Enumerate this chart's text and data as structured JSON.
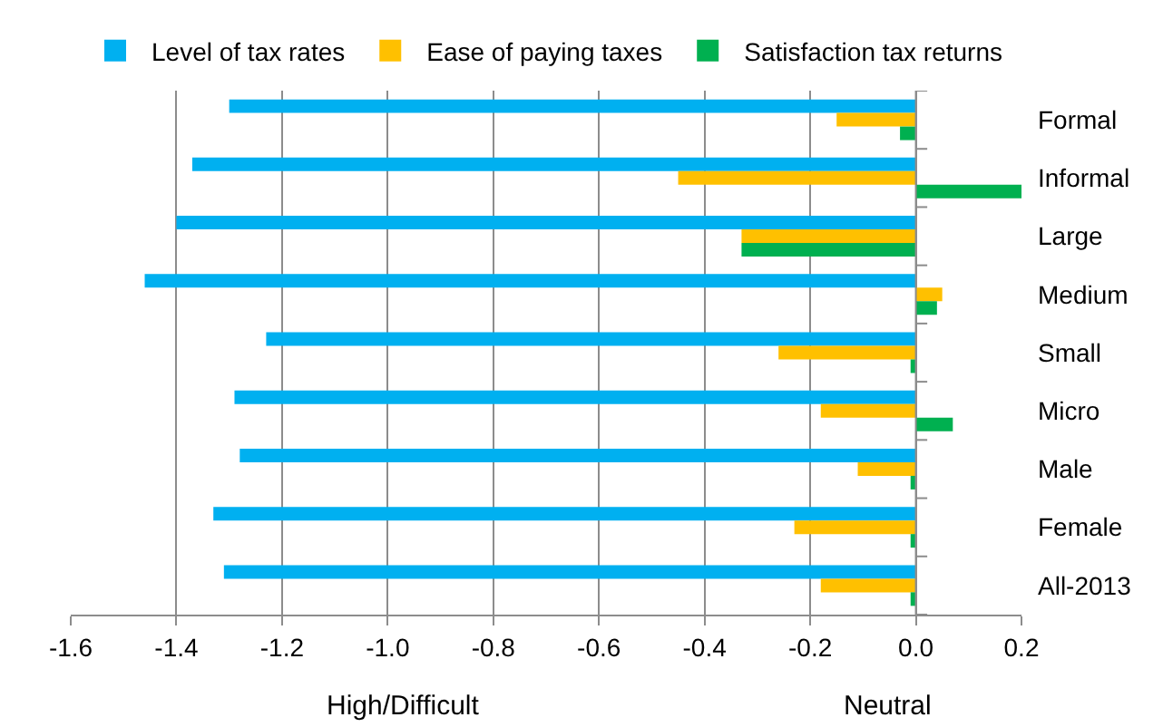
{
  "chart_data": {
    "type": "bar",
    "orientation": "horizontal",
    "categories": [
      "Formal",
      "Informal",
      "Large",
      "Medium",
      "Small",
      "Micro",
      "Male",
      "Female",
      "All-2013"
    ],
    "series": [
      {
        "name": "Level of tax rates",
        "color": "#00b0f0",
        "values": [
          -1.3,
          -1.37,
          -1.4,
          -1.46,
          -1.23,
          -1.29,
          -1.28,
          -1.33,
          -1.31
        ]
      },
      {
        "name": "Ease of paying taxes",
        "color": "#ffc000",
        "values": [
          -0.15,
          -0.45,
          -0.33,
          0.05,
          -0.26,
          -0.18,
          -0.11,
          -0.23,
          -0.18
        ]
      },
      {
        "name": "Satisfaction tax returns",
        "color": "#00b050",
        "values": [
          -0.03,
          0.2,
          -0.33,
          0.04,
          -0.01,
          0.07,
          -0.01,
          -0.01,
          -0.01
        ]
      }
    ],
    "xlim": [
      -1.6,
      0.2
    ],
    "xticks": [
      {
        "value": -1.6,
        "label": "-1.6"
      },
      {
        "value": -1.4,
        "label": "-1.4"
      },
      {
        "value": -1.2,
        "label": "-1.2"
      },
      {
        "value": -1.0,
        "label": "-1.0"
      },
      {
        "value": -0.8,
        "label": "-0.8"
      },
      {
        "value": -0.6,
        "label": "-0.6"
      },
      {
        "value": -0.4,
        "label": "-0.4"
      },
      {
        "value": -0.2,
        "label": "-0.2"
      },
      {
        "value": 0,
        "label": "0.0"
      },
      {
        "value": 0.2,
        "label": "0.2"
      }
    ],
    "annotations": [
      "High/Difficult",
      "Neutral"
    ],
    "grid": "x",
    "legend": "top"
  }
}
